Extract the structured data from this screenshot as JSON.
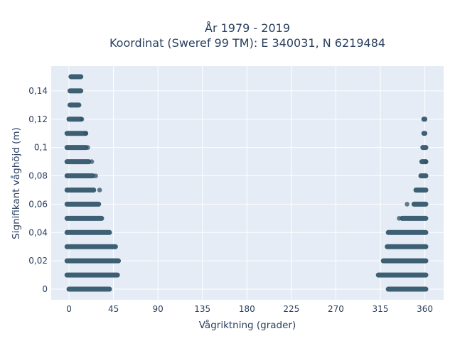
{
  "chart_data": {
    "type": "scatter",
    "title_lines": [
      "År 1979 - 2019",
      "Koordinat (Sweref 99 TM): E 340031, N 6219484"
    ],
    "xlabel": "Vågriktning (grader)",
    "ylabel": "Signifikant våghöjd (m)",
    "xlim": [
      -18,
      379
    ],
    "ylim": [
      -0.0075,
      0.1575
    ],
    "x_ticks": [
      0,
      45,
      90,
      135,
      180,
      225,
      270,
      315,
      360
    ],
    "x_tick_labels": [
      "0",
      "45",
      "90",
      "135",
      "180",
      "225",
      "270",
      "315",
      "360"
    ],
    "y_ticks": [
      0,
      0.02,
      0.04,
      0.06,
      0.08,
      0.1,
      0.12,
      0.14
    ],
    "y_tick_labels": [
      "0",
      "0,02",
      "0,04",
      "0,06",
      "0,08",
      "0,1",
      "0,12",
      "0,14"
    ],
    "grid": true,
    "marker_color": "#2f5468",
    "background": "#e5ecf6",
    "grid_color": "#ffffff",
    "clusters": [
      {
        "y": 0.15,
        "ranges": [
          [
            2,
            12
          ]
        ]
      },
      {
        "y": 0.14,
        "ranges": [
          [
            1,
            12
          ]
        ]
      },
      {
        "y": 0.13,
        "ranges": [
          [
            1,
            10
          ]
        ]
      },
      {
        "y": 0.12,
        "ranges": [
          [
            0,
            12
          ]
        ]
      },
      {
        "y": 0.11,
        "ranges": [
          [
            -2,
            17
          ]
        ]
      },
      {
        "y": 0.1,
        "ranges": [
          [
            -2,
            17
          ]
        ]
      },
      {
        "y": 0.09,
        "ranges": [
          [
            -2,
            20
          ]
        ]
      },
      {
        "y": 0.08,
        "ranges": [
          [
            -2,
            24
          ]
        ]
      },
      {
        "y": 0.07,
        "ranges": [
          [
            -2,
            25
          ]
        ]
      },
      {
        "y": 0.06,
        "ranges": [
          [
            -2,
            30
          ]
        ]
      },
      {
        "y": 0.05,
        "ranges": [
          [
            -2,
            33
          ]
        ]
      },
      {
        "y": 0.04,
        "ranges": [
          [
            -2,
            41
          ]
        ]
      },
      {
        "y": 0.03,
        "ranges": [
          [
            -2,
            47
          ]
        ]
      },
      {
        "y": 0.02,
        "ranges": [
          [
            -2,
            50
          ]
        ]
      },
      {
        "y": 0.01,
        "ranges": [
          [
            -2,
            49
          ]
        ]
      },
      {
        "y": 0,
        "ranges": [
          [
            0,
            41
          ]
        ]
      }
    ],
    "clusters_right": [
      {
        "y": 0.12,
        "ranges": [
          [
            359,
            360
          ]
        ]
      },
      {
        "y": 0.11,
        "ranges": [
          [
            359,
            360
          ]
        ]
      },
      {
        "y": 0.1,
        "ranges": [
          [
            358,
            361
          ]
        ]
      },
      {
        "y": 0.09,
        "ranges": [
          [
            357,
            361
          ]
        ]
      },
      {
        "y": 0.08,
        "ranges": [
          [
            356,
            361
          ]
        ]
      },
      {
        "y": 0.07,
        "ranges": [
          [
            351,
            361
          ]
        ]
      },
      {
        "y": 0.06,
        "ranges": [
          [
            349,
            361
          ]
        ]
      },
      {
        "y": 0.05,
        "ranges": [
          [
            337,
            361
          ]
        ]
      },
      {
        "y": 0.04,
        "ranges": [
          [
            323,
            361
          ]
        ]
      },
      {
        "y": 0.03,
        "ranges": [
          [
            322,
            361
          ]
        ]
      },
      {
        "y": 0.02,
        "ranges": [
          [
            318,
            361
          ]
        ]
      },
      {
        "y": 0.01,
        "ranges": [
          [
            313,
            361
          ]
        ]
      },
      {
        "y": 0,
        "ranges": [
          [
            323,
            361
          ]
        ]
      }
    ]
  }
}
